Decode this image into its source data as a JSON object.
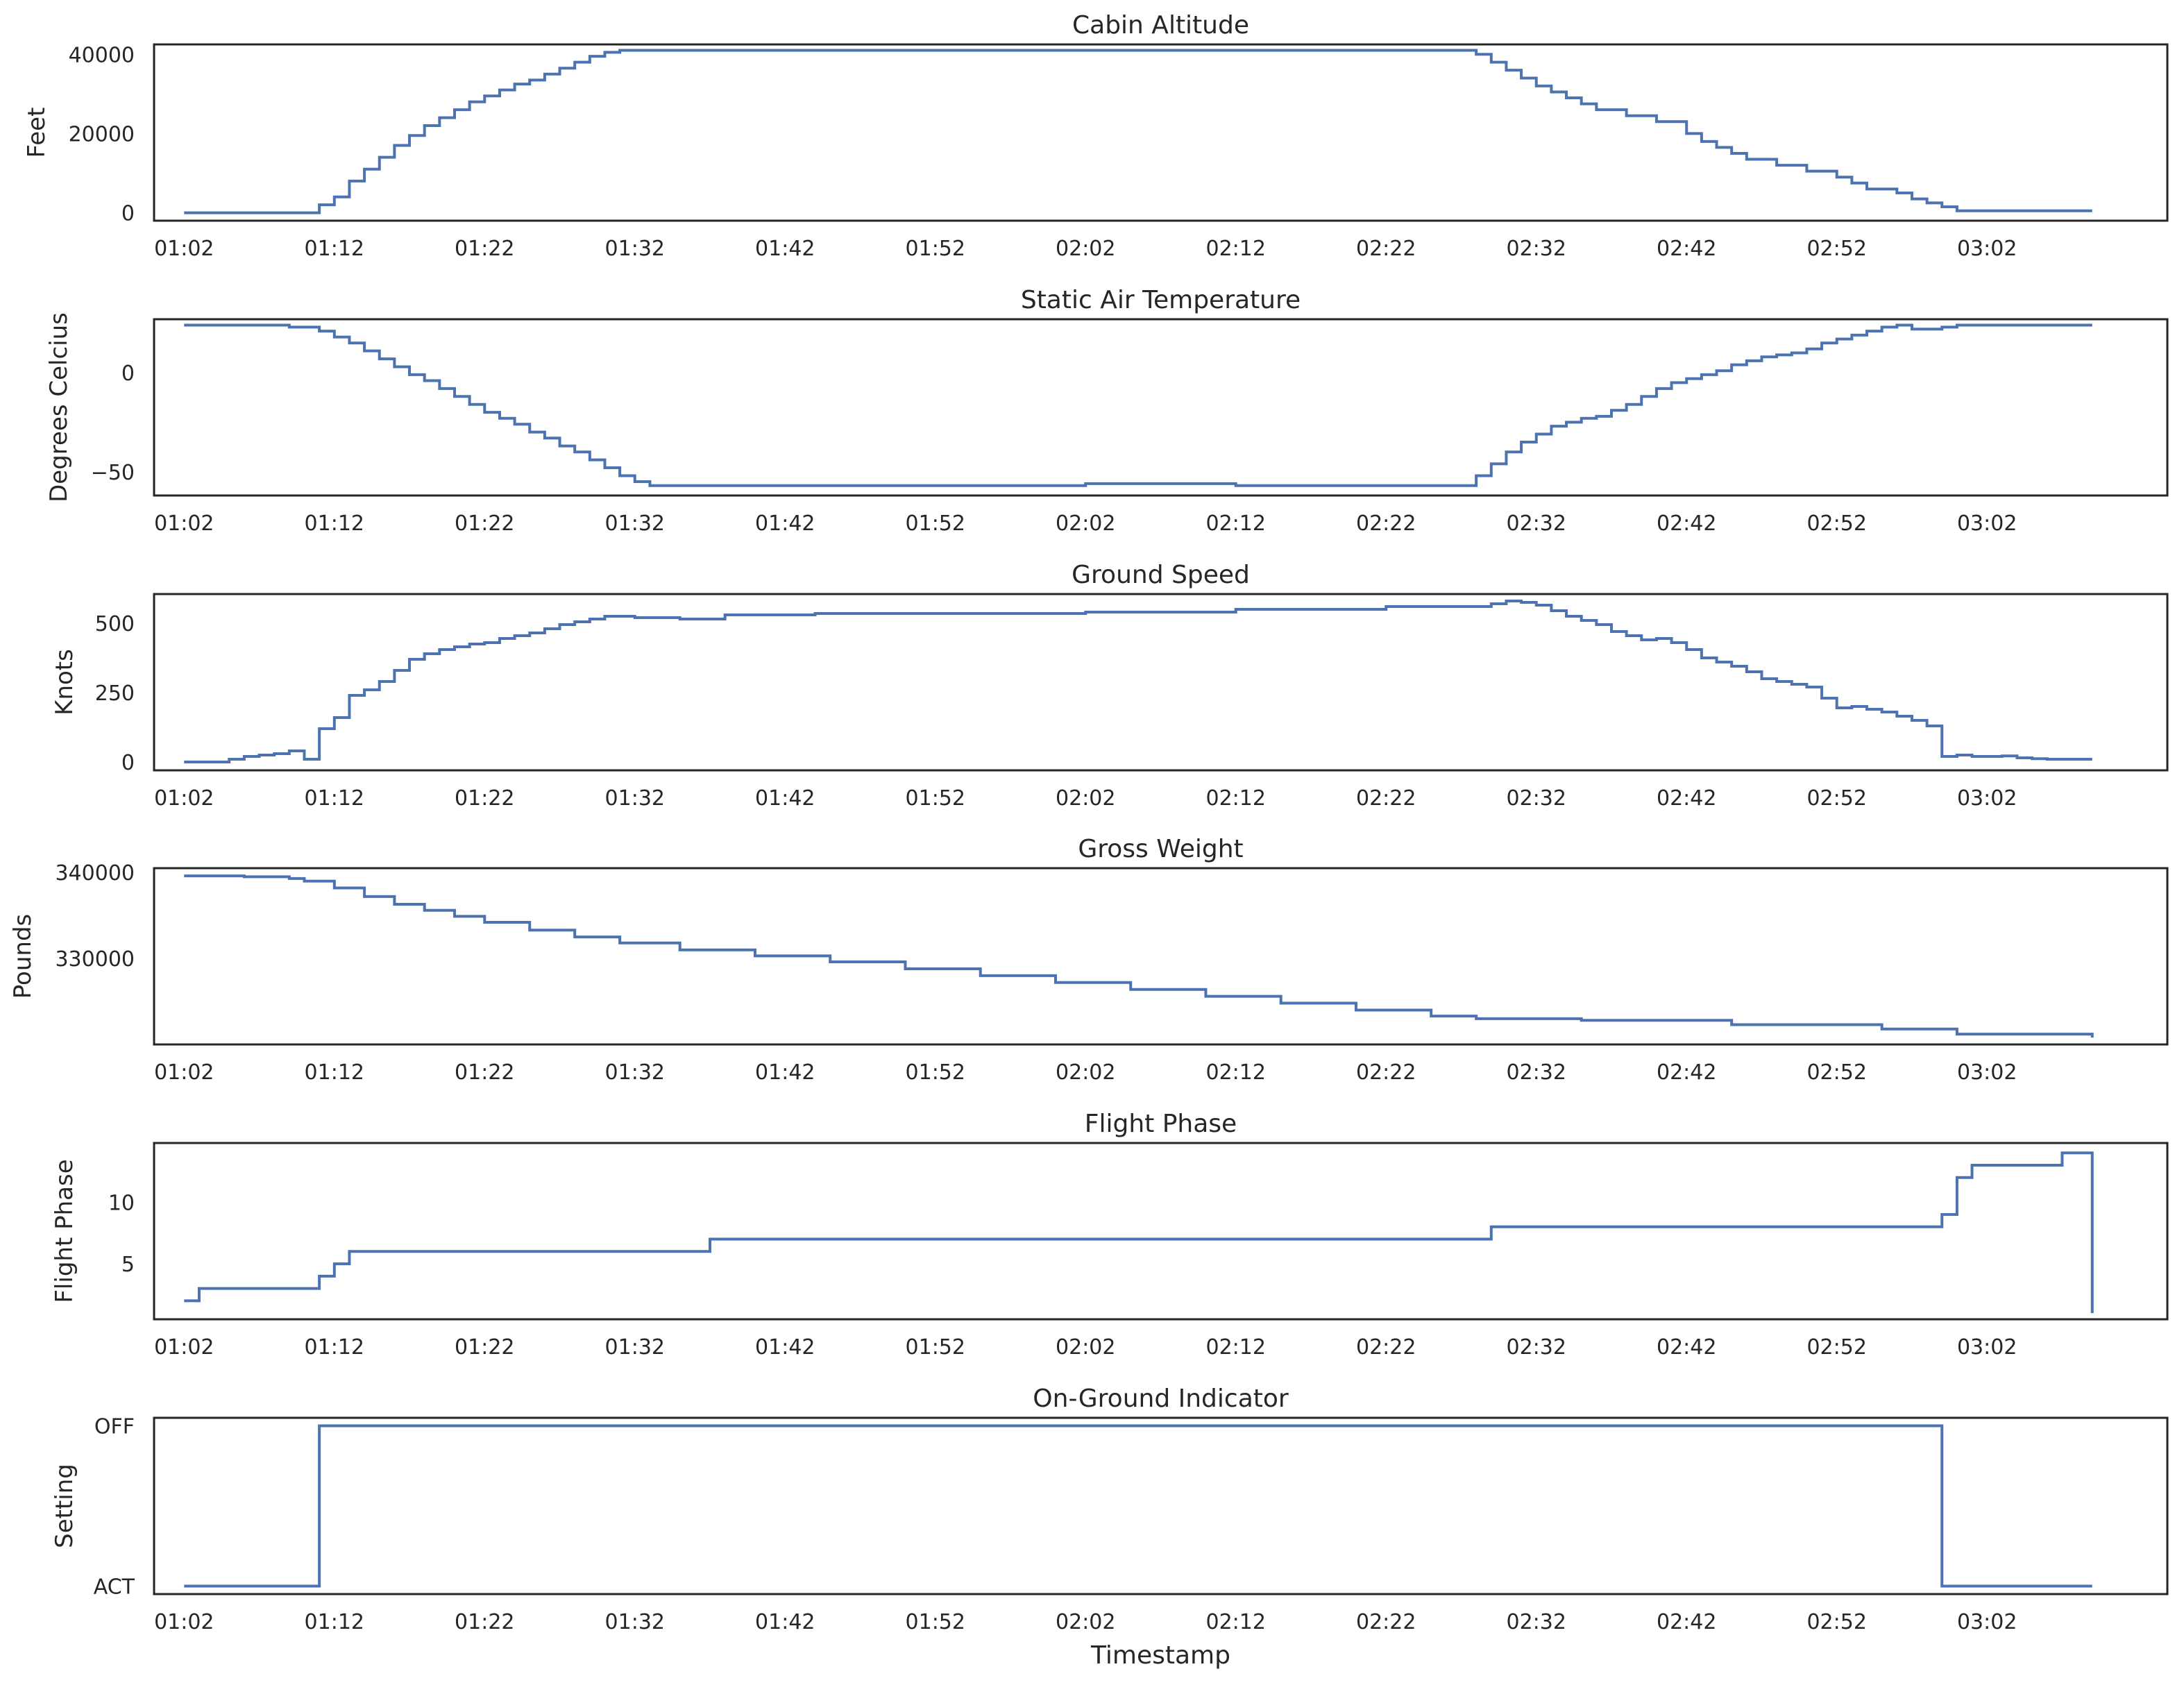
{
  "chart_data": [
    {
      "type": "line",
      "step": true,
      "title": "Cabin Altitude",
      "ylabel": "Feet",
      "xlabel": "",
      "xlim": [
        "01:00",
        "03:14"
      ],
      "ylim": [
        -2000,
        42500
      ],
      "yticks": [
        0,
        20000,
        40000
      ],
      "ytick_labels": [
        "0",
        "20000",
        "40000"
      ],
      "xtick_labels": [
        "01:02",
        "01:12",
        "01:22",
        "01:32",
        "01:42",
        "01:52",
        "02:02",
        "02:12",
        "02:22",
        "02:32",
        "02:42",
        "02:52",
        "03:02"
      ],
      "color": "#4c72b0",
      "grid": false,
      "x": [
        "01:02",
        "01:11",
        "01:12",
        "01:13",
        "01:14",
        "01:15",
        "01:16",
        "01:17",
        "01:18",
        "01:19",
        "01:20",
        "01:21",
        "01:22",
        "01:23",
        "01:24",
        "01:25",
        "01:26",
        "01:27",
        "01:28",
        "01:29",
        "01:30",
        "01:31",
        "01:32",
        "01:33",
        "01:34",
        "01:35",
        "01:36",
        "02:28",
        "02:29",
        "02:30",
        "02:31",
        "02:32",
        "02:33",
        "02:34",
        "02:35",
        "02:36",
        "02:38",
        "02:40",
        "02:42",
        "02:43",
        "02:44",
        "02:45",
        "02:46",
        "02:48",
        "02:50",
        "02:52",
        "02:53",
        "02:54",
        "02:56",
        "02:57",
        "02:58",
        "02:59",
        "03:00",
        "03:09"
      ],
      "y": [
        0,
        2000,
        4000,
        8000,
        11000,
        14000,
        17000,
        19500,
        22000,
        24000,
        26000,
        28000,
        29500,
        31000,
        32500,
        33500,
        35000,
        36500,
        38000,
        39500,
        40500,
        41000,
        41000,
        41000,
        41000,
        41000,
        41000,
        40000,
        38000,
        36000,
        34000,
        32000,
        30500,
        29000,
        27500,
        26000,
        24500,
        23000,
        20000,
        18000,
        16500,
        15000,
        13500,
        12000,
        10500,
        9000,
        7500,
        6000,
        5000,
        3500,
        2500,
        1500,
        500,
        500
      ]
    },
    {
      "type": "line",
      "step": true,
      "title": "Static Air Temperature",
      "ylabel": "Degrees Celcius",
      "xlabel": "",
      "xlim": [
        "01:00",
        "03:14"
      ],
      "ylim": [
        -62,
        27
      ],
      "yticks": [
        -50,
        0
      ],
      "ytick_labels": [
        "−50",
        "0"
      ],
      "xtick_labels": [
        "01:02",
        "01:12",
        "01:22",
        "01:32",
        "01:42",
        "01:52",
        "02:02",
        "02:12",
        "02:22",
        "02:32",
        "02:42",
        "02:52",
        "03:02"
      ],
      "color": "#4c72b0",
      "grid": false,
      "x": [
        "01:02",
        "01:09",
        "01:11",
        "01:12",
        "01:13",
        "01:14",
        "01:15",
        "01:16",
        "01:17",
        "01:18",
        "01:19",
        "01:20",
        "01:21",
        "01:22",
        "01:23",
        "01:24",
        "01:25",
        "01:26",
        "01:27",
        "01:28",
        "01:29",
        "01:30",
        "01:31",
        "01:32",
        "01:33",
        "01:34",
        "01:35",
        "01:36",
        "01:42",
        "01:52",
        "02:02",
        "02:12",
        "02:22",
        "02:28",
        "02:29",
        "02:30",
        "02:31",
        "02:32",
        "02:33",
        "02:34",
        "02:35",
        "02:36",
        "02:37",
        "02:38",
        "02:39",
        "02:40",
        "02:41",
        "02:42",
        "02:43",
        "02:44",
        "02:45",
        "02:46",
        "02:47",
        "02:48",
        "02:49",
        "02:50",
        "02:51",
        "02:52",
        "02:53",
        "02:54",
        "02:55",
        "02:56",
        "02:57",
        "02:58",
        "02:59",
        "03:00",
        "03:05",
        "03:09"
      ],
      "y": [
        24,
        23,
        21,
        18,
        15,
        11,
        7,
        3,
        -1,
        -4,
        -8,
        -12,
        -16,
        -20,
        -23,
        -26,
        -30,
        -33,
        -37,
        -40,
        -44,
        -48,
        -52,
        -55,
        -57,
        -57,
        -57,
        -57,
        -57,
        -57,
        -56,
        -57,
        -57,
        -52,
        -46,
        -40,
        -35,
        -31,
        -27,
        -25,
        -23,
        -22,
        -19,
        -16,
        -12,
        -8,
        -5,
        -3,
        -1,
        1,
        4,
        6,
        8,
        9,
        10,
        12,
        15,
        17,
        19,
        21,
        23,
        24,
        22,
        22,
        23,
        24,
        24,
        24
      ]
    },
    {
      "type": "line",
      "step": true,
      "title": "Ground Speed",
      "ylabel": "Knots",
      "xlabel": "",
      "xlim": [
        "01:00",
        "03:14"
      ],
      "ylim": [
        -30,
        605
      ],
      "yticks": [
        0,
        250,
        500
      ],
      "ytick_labels": [
        "0",
        "250",
        "500"
      ],
      "xtick_labels": [
        "01:02",
        "01:12",
        "01:22",
        "01:32",
        "01:42",
        "01:52",
        "02:02",
        "02:12",
        "02:22",
        "02:32",
        "02:42",
        "02:52",
        "03:02"
      ],
      "color": "#4c72b0",
      "grid": false,
      "x": [
        "01:02",
        "01:05",
        "01:06",
        "01:07",
        "01:08",
        "01:09",
        "01:10",
        "01:11",
        "01:12",
        "01:13",
        "01:14",
        "01:15",
        "01:16",
        "01:17",
        "01:18",
        "01:19",
        "01:20",
        "01:21",
        "01:22",
        "01:23",
        "01:24",
        "01:25",
        "01:26",
        "01:27",
        "01:28",
        "01:29",
        "01:30",
        "01:32",
        "01:35",
        "01:38",
        "01:44",
        "01:52",
        "02:02",
        "02:12",
        "02:22",
        "02:29",
        "02:30",
        "02:31",
        "02:32",
        "02:33",
        "02:34",
        "02:35",
        "02:36",
        "02:37",
        "02:38",
        "02:39",
        "02:40",
        "02:41",
        "02:42",
        "02:43",
        "02:44",
        "02:45",
        "02:46",
        "02:47",
        "02:48",
        "02:49",
        "02:50",
        "02:51",
        "02:52",
        "02:53",
        "02:54",
        "02:55",
        "02:56",
        "02:57",
        "02:58",
        "02:59",
        "03:00",
        "03:01",
        "03:02",
        "03:03",
        "03:04",
        "03:05",
        "03:06",
        "03:09"
      ],
      "y": [
        0,
        10,
        20,
        25,
        30,
        40,
        10,
        120,
        160,
        240,
        260,
        290,
        330,
        370,
        390,
        405,
        415,
        425,
        430,
        445,
        455,
        465,
        480,
        495,
        505,
        515,
        525,
        520,
        515,
        530,
        535,
        535,
        540,
        550,
        560,
        570,
        580,
        575,
        565,
        545,
        525,
        510,
        495,
        470,
        455,
        440,
        445,
        430,
        405,
        375,
        360,
        345,
        325,
        300,
        290,
        280,
        270,
        230,
        195,
        200,
        190,
        180,
        165,
        150,
        130,
        20,
        25,
        20,
        20,
        22,
        15,
        12,
        10,
        10
      ]
    },
    {
      "type": "line",
      "step": true,
      "title": "Gross Weight",
      "ylabel": "Pounds",
      "xlabel": "",
      "xlim": [
        "01:00",
        "03:14"
      ],
      "ylim": [
        320000,
        340500
      ],
      "yticks": [
        330000,
        340000
      ],
      "ytick_labels": [
        "330000",
        "340000"
      ],
      "xtick_labels": [
        "01:02",
        "01:12",
        "01:22",
        "01:32",
        "01:42",
        "01:52",
        "02:02",
        "02:12",
        "02:22",
        "02:32",
        "02:42",
        "02:52",
        "03:02"
      ],
      "color": "#4c72b0",
      "grid": false,
      "x": [
        "01:02",
        "01:06",
        "01:09",
        "01:10",
        "01:12",
        "01:14",
        "01:16",
        "01:18",
        "01:20",
        "01:22",
        "01:25",
        "01:28",
        "01:31",
        "01:35",
        "01:40",
        "01:45",
        "01:50",
        "01:55",
        "02:00",
        "02:05",
        "02:10",
        "02:15",
        "02:20",
        "02:25",
        "02:28",
        "02:35",
        "02:45",
        "02:55",
        "03:00",
        "03:09"
      ],
      "y": [
        339600,
        339500,
        339300,
        339000,
        338200,
        337200,
        336300,
        335600,
        334900,
        334200,
        333300,
        332500,
        331800,
        331000,
        330300,
        329600,
        328800,
        328000,
        327200,
        326400,
        325600,
        324800,
        324000,
        323300,
        323000,
        322800,
        322300,
        321800,
        321200,
        320800
      ]
    },
    {
      "type": "line",
      "step": true,
      "title": "Flight Phase",
      "ylabel": "Flight Phase",
      "xlabel": "",
      "xlim": [
        "01:00",
        "03:14"
      ],
      "ylim": [
        0.5,
        14.8
      ],
      "yticks": [
        5,
        10
      ],
      "ytick_labels": [
        "5",
        "10"
      ],
      "xtick_labels": [
        "01:02",
        "01:12",
        "01:22",
        "01:32",
        "01:42",
        "01:52",
        "02:02",
        "02:12",
        "02:22",
        "02:32",
        "02:42",
        "02:52",
        "03:02"
      ],
      "color": "#4c72b0",
      "grid": false,
      "x": [
        "01:02",
        "01:03",
        "01:10",
        "01:11",
        "01:12",
        "01:13",
        "01:37",
        "02:29",
        "02:58",
        "02:59",
        "03:00",
        "03:01",
        "03:06",
        "03:07",
        "03:09",
        "03:09"
      ],
      "y": [
        2,
        3,
        3,
        4,
        5,
        6,
        7,
        8,
        8,
        9,
        12,
        13,
        13,
        14,
        14,
        1
      ]
    },
    {
      "type": "line",
      "step": true,
      "title": "On-Ground Indicator",
      "ylabel": "Setting",
      "xlabel": "Timestamp",
      "xlim": [
        "01:00",
        "03:14"
      ],
      "ylim": [
        -0.05,
        1.05
      ],
      "yticks": [
        0,
        1
      ],
      "ytick_labels": [
        "ACT",
        "OFF"
      ],
      "xtick_labels": [
        "01:02",
        "01:12",
        "01:22",
        "01:32",
        "01:42",
        "01:52",
        "02:02",
        "02:12",
        "02:22",
        "02:32",
        "02:42",
        "02:52",
        "03:02"
      ],
      "color": "#4c72b0",
      "grid": false,
      "x": [
        "01:02",
        "01:11",
        "02:59",
        "03:09"
      ],
      "y": [
        "ACT",
        "OFF",
        "ACT",
        "ACT"
      ]
    }
  ]
}
